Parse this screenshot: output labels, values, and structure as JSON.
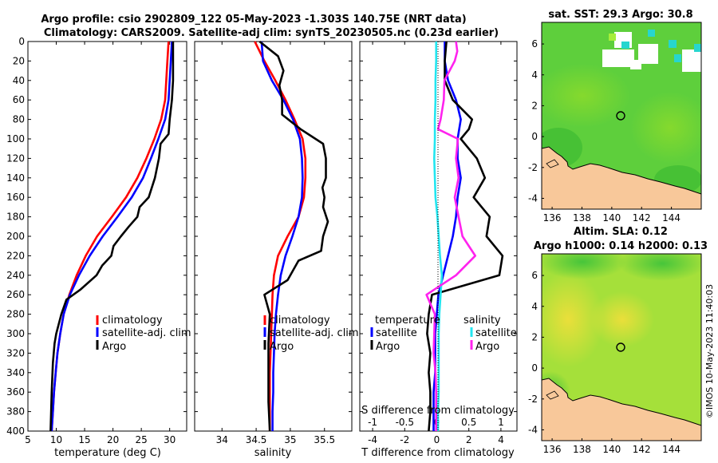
{
  "title": {
    "line1": "Argo profile: csio 2902809_122 05-May-2023 -1.303S 140.75E (NRT data)",
    "line2": "Climatology: CARS2009. Satellite-adj clim: synTS_20230505.nc (0.23d earlier)"
  },
  "colors": {
    "climatology": "#ff0000",
    "satellite": "#0000ff",
    "argo": "#000000",
    "sat_s": "#22e6f0",
    "argo_s": "#ff22ee"
  },
  "chart_data": [
    {
      "id": "temperature",
      "type": "line",
      "xlabel": "temperature (deg C)",
      "xlim": [
        5,
        33
      ],
      "ylim": [
        0,
        400
      ],
      "xticks": [
        5,
        10,
        15,
        20,
        25,
        30
      ],
      "yticks": [
        0,
        20,
        40,
        60,
        80,
        100,
        120,
        140,
        160,
        180,
        200,
        220,
        240,
        260,
        280,
        300,
        320,
        340,
        360,
        380,
        400
      ],
      "legend": [
        "climatology",
        "satellite-adj. clim",
        "Argo"
      ],
      "series": [
        {
          "name": "climatology",
          "color": "#ff0000",
          "depth": [
            0,
            20,
            40,
            60,
            80,
            100,
            120,
            140,
            160,
            180,
            200,
            220,
            240,
            260,
            280,
            300,
            320,
            340,
            360,
            380,
            400
          ],
          "values": [
            29.8,
            29.6,
            29.4,
            29.2,
            28.5,
            27.3,
            25.9,
            24.3,
            22.3,
            19.8,
            17.2,
            15.2,
            13.6,
            12.3,
            11.3,
            10.7,
            10.2,
            9.9,
            9.6,
            9.4,
            9.2
          ]
        },
        {
          "name": "satellite-adj. clim",
          "color": "#0000ff",
          "depth": [
            0,
            20,
            40,
            60,
            80,
            100,
            120,
            140,
            160,
            180,
            200,
            220,
            240,
            260,
            280,
            300,
            320,
            340,
            360,
            380,
            400
          ],
          "values": [
            30.4,
            30.2,
            30.0,
            29.8,
            29.2,
            28.0,
            26.7,
            25.3,
            23.3,
            20.8,
            18.2,
            15.9,
            14.0,
            12.4,
            11.3,
            10.7,
            10.2,
            9.9,
            9.6,
            9.4,
            9.2
          ]
        },
        {
          "name": "Argo",
          "color": "#000000",
          "depth": [
            0,
            20,
            40,
            60,
            80,
            95,
            105,
            120,
            140,
            160,
            170,
            180,
            190,
            200,
            210,
            220,
            230,
            240,
            255,
            265,
            280,
            300,
            310,
            330,
            360,
            380,
            400
          ],
          "values": [
            30.6,
            30.6,
            30.6,
            30.4,
            30.0,
            29.8,
            28.4,
            28.1,
            27.4,
            26.3,
            24.7,
            24.3,
            22.8,
            21.4,
            20.1,
            19.7,
            18.1,
            17.1,
            14.2,
            11.8,
            10.9,
            10.0,
            9.7,
            9.4,
            9.2,
            9.1,
            9.0
          ]
        }
      ]
    },
    {
      "id": "salinity",
      "type": "line",
      "xlabel": "salinity",
      "xlim": [
        33.6,
        35.9
      ],
      "ylim": [
        0,
        400
      ],
      "xticks": [
        34,
        34.5,
        35,
        35.5
      ],
      "xticklabels": [
        "34",
        "34.5",
        "35",
        "35.5"
      ],
      "legend": [
        "climatology",
        "satellite-adj. clim",
        "Argo"
      ],
      "series": [
        {
          "name": "climatology",
          "color": "#ff0000",
          "depth": [
            0,
            20,
            40,
            60,
            80,
            100,
            120,
            140,
            160,
            180,
            200,
            220,
            240,
            260,
            280,
            300,
            320,
            340,
            360,
            380,
            400
          ],
          "values": [
            34.48,
            34.62,
            34.78,
            34.93,
            35.06,
            35.18,
            35.22,
            35.22,
            35.2,
            35.12,
            34.96,
            34.82,
            34.76,
            34.74,
            34.73,
            34.72,
            34.71,
            34.7,
            34.7,
            34.7,
            34.7
          ]
        },
        {
          "name": "satellite-adj. clim",
          "color": "#0000ff",
          "depth": [
            0,
            20,
            40,
            60,
            80,
            100,
            120,
            140,
            160,
            180,
            200,
            220,
            240,
            260,
            280,
            300,
            320,
            340,
            360,
            380,
            400
          ],
          "values": [
            34.58,
            34.6,
            34.73,
            34.9,
            35.04,
            35.14,
            35.17,
            35.18,
            35.17,
            35.12,
            35.03,
            34.93,
            34.86,
            34.82,
            34.79,
            34.77,
            34.76,
            34.75,
            34.75,
            34.74,
            34.74
          ]
        },
        {
          "name": "Argo",
          "color": "#000000",
          "depth": [
            0,
            15,
            30,
            45,
            60,
            75,
            90,
            105,
            120,
            140,
            150,
            160,
            170,
            185,
            200,
            215,
            225,
            245,
            260,
            280,
            310,
            340,
            370,
            400
          ],
          "values": [
            34.55,
            34.82,
            34.9,
            34.84,
            34.88,
            34.88,
            35.15,
            35.48,
            35.52,
            35.52,
            35.47,
            35.5,
            35.48,
            35.55,
            35.48,
            35.45,
            35.12,
            34.96,
            34.62,
            34.7,
            34.68,
            34.68,
            34.68,
            34.7
          ]
        }
      ]
    },
    {
      "id": "difference",
      "type": "line",
      "xlabel": "T difference from climatology",
      "x2label": "S difference from climatology",
      "xlim": [
        -4.8,
        5.0
      ],
      "x2lim": [
        -1.2,
        1.25
      ],
      "ylim": [
        0,
        400
      ],
      "xticks": [
        -4,
        -2,
        0,
        2,
        4
      ],
      "x2ticks": [
        -1,
        -0.5,
        0,
        0.5,
        1
      ],
      "x2ticklabels": [
        "-1",
        "-0.5",
        "0",
        "0.5",
        "1"
      ],
      "legend_temperature": {
        "title": "temperature",
        "items": [
          "satellite",
          "Argo"
        ]
      },
      "legend_salinity": {
        "title": "salinity",
        "items": [
          "satellite",
          "Argo"
        ]
      },
      "series": [
        {
          "name": "temperature satellite",
          "axis": "T",
          "color": "#0000ff",
          "depth": [
            0,
            20,
            40,
            60,
            80,
            100,
            120,
            140,
            160,
            180,
            200,
            220,
            240,
            260,
            280,
            300,
            320,
            340,
            360,
            380,
            400
          ],
          "values": [
            0.5,
            0.5,
            0.7,
            1.2,
            1.5,
            1.3,
            1.3,
            1.5,
            1.3,
            1.2,
            1.0,
            0.7,
            0.4,
            0.1,
            0.0,
            -0.1,
            -0.1,
            -0.1,
            -0.2,
            -0.2,
            -0.2
          ]
        },
        {
          "name": "temperature Argo",
          "axis": "T",
          "color": "#000000",
          "depth": [
            0,
            20,
            40,
            60,
            80,
            90,
            100,
            120,
            140,
            160,
            180,
            200,
            220,
            240,
            260,
            280,
            300,
            320,
            340,
            360,
            380,
            400
          ],
          "values": [
            0.6,
            0.5,
            0.5,
            1.0,
            2.2,
            2.0,
            1.5,
            2.5,
            3.0,
            2.3,
            3.3,
            3.1,
            4.1,
            3.9,
            -0.3,
            -0.5,
            -0.6,
            -0.4,
            -0.5,
            -0.4,
            -0.4,
            -0.5
          ]
        },
        {
          "name": "salinity satellite",
          "axis": "S",
          "color": "#22e6f0",
          "depth": [
            0,
            20,
            40,
            60,
            80,
            100,
            120,
            140,
            160,
            180,
            200,
            220,
            240,
            260,
            280,
            300,
            320,
            340,
            360,
            380,
            400
          ],
          "values": [
            -0.01,
            -0.01,
            -0.02,
            -0.02,
            -0.03,
            -0.03,
            -0.04,
            -0.03,
            -0.02,
            0.01,
            0.03,
            0.05,
            0.08,
            0.06,
            0.04,
            0.03,
            0.03,
            0.03,
            0.03,
            0.02,
            0.02
          ]
        },
        {
          "name": "salinity Argo",
          "axis": "S",
          "color": "#ff22ee",
          "depth": [
            0,
            10,
            20,
            40,
            60,
            80,
            90,
            100,
            120,
            140,
            160,
            180,
            200,
            220,
            240,
            260,
            280,
            300,
            320,
            340,
            360,
            380,
            400
          ],
          "values": [
            0.3,
            0.32,
            0.28,
            0.12,
            0.11,
            0.06,
            0.02,
            0.33,
            0.3,
            0.34,
            0.28,
            0.34,
            0.4,
            0.6,
            0.3,
            -0.16,
            -0.03,
            -0.04,
            -0.05,
            -0.02,
            -0.01,
            -0.01,
            -0.01
          ]
        }
      ]
    },
    {
      "id": "sst_map",
      "type": "heatmap",
      "title": "sat. SST: 29.3  Argo: 30.8",
      "xlim": [
        135.3,
        146.0
      ],
      "ylim": [
        -4.7,
        7.4
      ],
      "xticks": [
        136,
        138,
        140,
        142,
        144
      ],
      "yticks": [
        -4,
        -2,
        0,
        2,
        4,
        6
      ],
      "argo_position": {
        "lon": 140.75,
        "lat": -1.303
      }
    },
    {
      "id": "sla_map",
      "type": "heatmap",
      "title_line1": "Altim. SLA: 0.12",
      "title_line2": "Argo h1000: 0.14  h2000: 0.13",
      "xlim": [
        135.3,
        146.0
      ],
      "ylim": [
        -4.7,
        7.4
      ],
      "xticks": [
        136,
        138,
        140,
        142,
        144
      ],
      "yticks": [
        -4,
        -2,
        0,
        2,
        4,
        6
      ],
      "argo_position": {
        "lon": 140.75,
        "lat": -1.303
      }
    }
  ],
  "copyright": "©IMOS 10-May-2023 11:40:03"
}
